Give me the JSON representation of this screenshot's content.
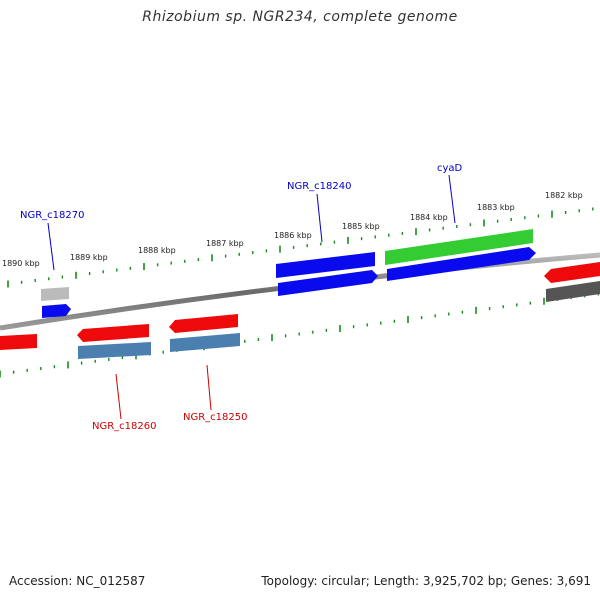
{
  "title": "Rhizobium sp. NGR234, complete genome",
  "footer": {
    "accession": "Accession: NC_012587",
    "summary": "Topology: circular; Length: 3,925,702 bp; Genes: 3,691"
  },
  "colors": {
    "backbone": "#777777",
    "tick": "#1a8a1a",
    "plus_label": "#0000cc",
    "minus_label": "#cc0000",
    "cds_blue": "#0a0aee",
    "cds_red": "#ee0a0a",
    "cds_green": "#33cc33",
    "cds_steel": "#4a7fb0",
    "cds_gray": "#aaaaaa",
    "cds_dark": "#555555"
  },
  "kbp_labels": [
    "1890 kbp",
    "1889 kbp",
    "1888 kbp",
    "1887 kbp",
    "1886 kbp",
    "1885 kbp",
    "1884 kbp",
    "1883 kbp",
    "1882 kbp"
  ],
  "gene_labels": {
    "plus": [
      "NGR_c18270",
      "NGR_c18240",
      "cyaD"
    ],
    "minus": [
      "NGR_c18260",
      "NGR_c18250"
    ]
  }
}
